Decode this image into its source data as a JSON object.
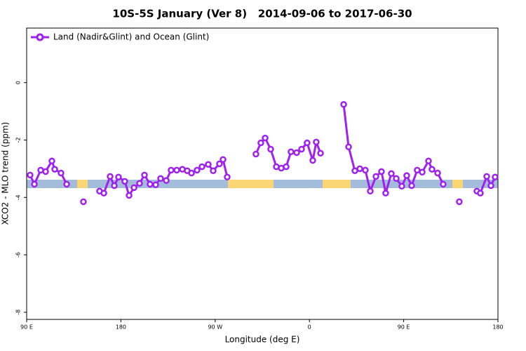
{
  "chart_data": {
    "type": "line",
    "title": "10S-5S January (Ver 8)   2014-09-06 to 2017-06-30",
    "xlabel": "Longitude (deg E)",
    "ylabel": "XCO2 - MLO trend (ppm)",
    "x": [
      93.3,
      97.4,
      103.4,
      108.1,
      114.1,
      116.8,
      122.8,
      128.2,
      null,
      144.2,
      null,
      159.6,
      163.7,
      169.7,
      173.7,
      177.7,
      183.7,
      187.8,
      192.5,
      197.8,
      202.5,
      207.8,
      213.2,
      217.9,
      223.3,
      227.9,
      233.3,
      238.7,
      243.3,
      247.4,
      252.7,
      257.4,
      263.4,
      268.1,
      274.1,
      277.5,
      281.5,
      null,
      308.9,
      313.6,
      317.7,
      323.0,
      328.4,
      333.1,
      337.8,
      342.4,
      347.8,
      352.5,
      357.8,
      363.2,
      366.5,
      370.6,
      null,
      392.7,
      397.4,
      403.4,
      408.1,
      413.4,
      418.1,
      423.5,
      428.8,
      432.8,
      438.2,
      442.9,
      448.2,
      452.9,
      457.6,
      462.9,
      467.7,
      473.7,
      477.0,
      482.4,
      487.7,
      null,
      503.1,
      null,
      519.9,
      523.2,
      529.3,
      533.3,
      537.3
    ],
    "series": [
      {
        "name": "Land (Nadir&Glint) and Ocean (Glint)",
        "color": "#a020f0",
        "values": [
          -3.22,
          -3.54,
          -3.05,
          -3.1,
          -2.73,
          -3.02,
          -3.15,
          -3.54,
          null,
          -4.15,
          null,
          -3.78,
          -3.85,
          -3.27,
          -3.59,
          -3.29,
          -3.44,
          -3.93,
          -3.66,
          -3.51,
          -3.22,
          -3.54,
          -3.56,
          -3.34,
          -3.41,
          -3.05,
          -3.05,
          -3.02,
          -3.07,
          -3.15,
          -3.05,
          -2.93,
          -2.85,
          -3.07,
          -2.83,
          -2.68,
          -3.29,
          null,
          -2.49,
          -2.1,
          -1.93,
          -2.32,
          -2.93,
          -2.98,
          -2.93,
          -2.41,
          -2.44,
          -2.32,
          -2.1,
          -2.71,
          -2.07,
          -2.46,
          null,
          -0.76,
          -2.24,
          -3.07,
          -3.0,
          -3.05,
          -3.78,
          -3.27,
          -3.1,
          -3.85,
          -3.17,
          -3.34,
          -3.61,
          -3.24,
          -3.59,
          -3.05,
          -3.12,
          -2.73,
          -3.02,
          -3.15,
          -3.54,
          null,
          -4.15,
          null,
          -3.78,
          -3.85,
          -3.27,
          -3.59,
          -3.29
        ]
      }
    ],
    "xlim": [
      90,
      540
    ],
    "ylim": [
      -8.25,
      1.9
    ],
    "xticks": [
      {
        "value": 90,
        "label": "90 E"
      },
      180,
      {
        "value": 270,
        "label": "90 W"
      },
      {
        "value": 360,
        "label": "0"
      },
      {
        "value": 450,
        "label": "90 E"
      },
      {
        "value": 540,
        "label": "180"
      }
    ],
    "yticks": [
      0,
      -2,
      -4,
      -6,
      -8
    ],
    "legend": "top-left"
  }
}
